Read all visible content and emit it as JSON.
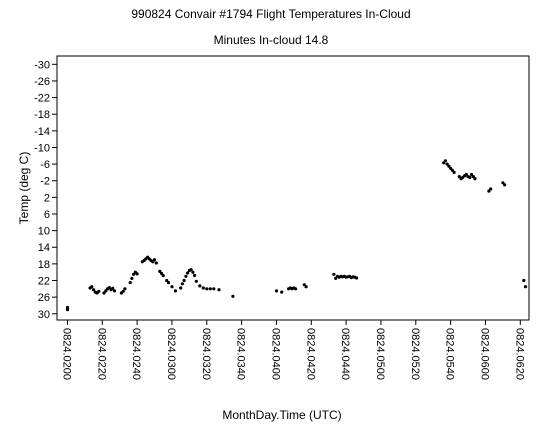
{
  "chart_data": {
    "type": "scatter",
    "title": "990824 Convair #1794 Flight Temperatures In-Cloud",
    "subtitle": "Minutes In-cloud 14.8",
    "xlabel": "MonthDay.Time (UTC)",
    "ylabel": "Temp (deg C)",
    "x_ticks": [
      "0824.0200",
      "0824.0220",
      "0824.0240",
      "0824.0300",
      "0824.0320",
      "0824.0340",
      "0824.0400",
      "0824.0420",
      "0824.0440",
      "0824.0500",
      "0824.0520",
      "0824.0540",
      "0824.0600",
      "0824.0620"
    ],
    "y_ticks": [
      "-30",
      "-26",
      "-22",
      "-18",
      "-14",
      "-10",
      "-6",
      "-2",
      "2",
      "6",
      "10",
      "14",
      "18",
      "22",
      "26",
      "30"
    ],
    "ylim": [
      -32,
      31.5
    ],
    "y_inverted": true,
    "xlim_minutes_after_0200": [
      -6,
      265
    ],
    "grid": false,
    "legend": "none",
    "marker_color": "#000000",
    "points_minutes_after_0200": [
      [
        0,
        29.0
      ],
      [
        0,
        28.5
      ],
      [
        13,
        23.8
      ],
      [
        14,
        23.5
      ],
      [
        15,
        24.2
      ],
      [
        16,
        24.8
      ],
      [
        17,
        25.0
      ],
      [
        18,
        24.6
      ],
      [
        21,
        25.0
      ],
      [
        22,
        24.5
      ],
      [
        23,
        24.0
      ],
      [
        24,
        23.7
      ],
      [
        25,
        24.2
      ],
      [
        26,
        23.9
      ],
      [
        27,
        24.5
      ],
      [
        31,
        25.0
      ],
      [
        32,
        24.6
      ],
      [
        33,
        24.0
      ],
      [
        36,
        22.5
      ],
      [
        37,
        21.5
      ],
      [
        38,
        20.5
      ],
      [
        39,
        20.0
      ],
      [
        40,
        20.4
      ],
      [
        43,
        17.5
      ],
      [
        44,
        17.2
      ],
      [
        45,
        16.8
      ],
      [
        46,
        16.4
      ],
      [
        47,
        16.8
      ],
      [
        48,
        17.2
      ],
      [
        49,
        17.5
      ],
      [
        50,
        17.0
      ],
      [
        51,
        17.8
      ],
      [
        53,
        19.8
      ],
      [
        54,
        20.3
      ],
      [
        55,
        20.8
      ],
      [
        57,
        22.0
      ],
      [
        58,
        22.5
      ],
      [
        60,
        23.5
      ],
      [
        62,
        24.5
      ],
      [
        65,
        23.8
      ],
      [
        66,
        22.8
      ],
      [
        67,
        22.0
      ],
      [
        68,
        21.0
      ],
      [
        69,
        20.2
      ],
      [
        70,
        19.6
      ],
      [
        71,
        19.4
      ],
      [
        72,
        20.0
      ],
      [
        73,
        20.8
      ],
      [
        74,
        22.2
      ],
      [
        76,
        23.3
      ],
      [
        78,
        23.8
      ],
      [
        80,
        24.0
      ],
      [
        82,
        24.0
      ],
      [
        84,
        24.0
      ],
      [
        87,
        24.2
      ],
      [
        95,
        25.8
      ],
      [
        120,
        24.5
      ],
      [
        123,
        24.8
      ],
      [
        127,
        24.0
      ],
      [
        128,
        23.8
      ],
      [
        129,
        24.0
      ],
      [
        130,
        23.8
      ],
      [
        131,
        24.0
      ],
      [
        136,
        23.0
      ],
      [
        137,
        23.5
      ],
      [
        153,
        20.5
      ],
      [
        154,
        21.5
      ],
      [
        155,
        21.0
      ],
      [
        156,
        21.2
      ],
      [
        157,
        21.0
      ],
      [
        158,
        21.1
      ],
      [
        159,
        21.0
      ],
      [
        160,
        21.2
      ],
      [
        161,
        21.1
      ],
      [
        162,
        21.0
      ],
      [
        163,
        21.3
      ],
      [
        164,
        21.1
      ],
      [
        165,
        21.2
      ],
      [
        166,
        21.4
      ],
      [
        216,
        -6.3
      ],
      [
        217,
        -6.8
      ],
      [
        218,
        -6.0
      ],
      [
        219,
        -5.5
      ],
      [
        220,
        -5.0
      ],
      [
        221,
        -4.5
      ],
      [
        222,
        -4.0
      ],
      [
        225,
        -3.0
      ],
      [
        226,
        -2.5
      ],
      [
        227,
        -2.8
      ],
      [
        228,
        -3.2
      ],
      [
        229,
        -3.5
      ],
      [
        230,
        -3.0
      ],
      [
        231,
        -2.8
      ],
      [
        232,
        -3.5
      ],
      [
        233,
        -3.0
      ],
      [
        234,
        -2.5
      ],
      [
        242,
        0.5
      ],
      [
        243,
        0.0
      ],
      [
        250,
        -1.5
      ],
      [
        251,
        -1.0
      ],
      [
        262,
        22.0
      ],
      [
        263,
        23.5
      ]
    ]
  }
}
